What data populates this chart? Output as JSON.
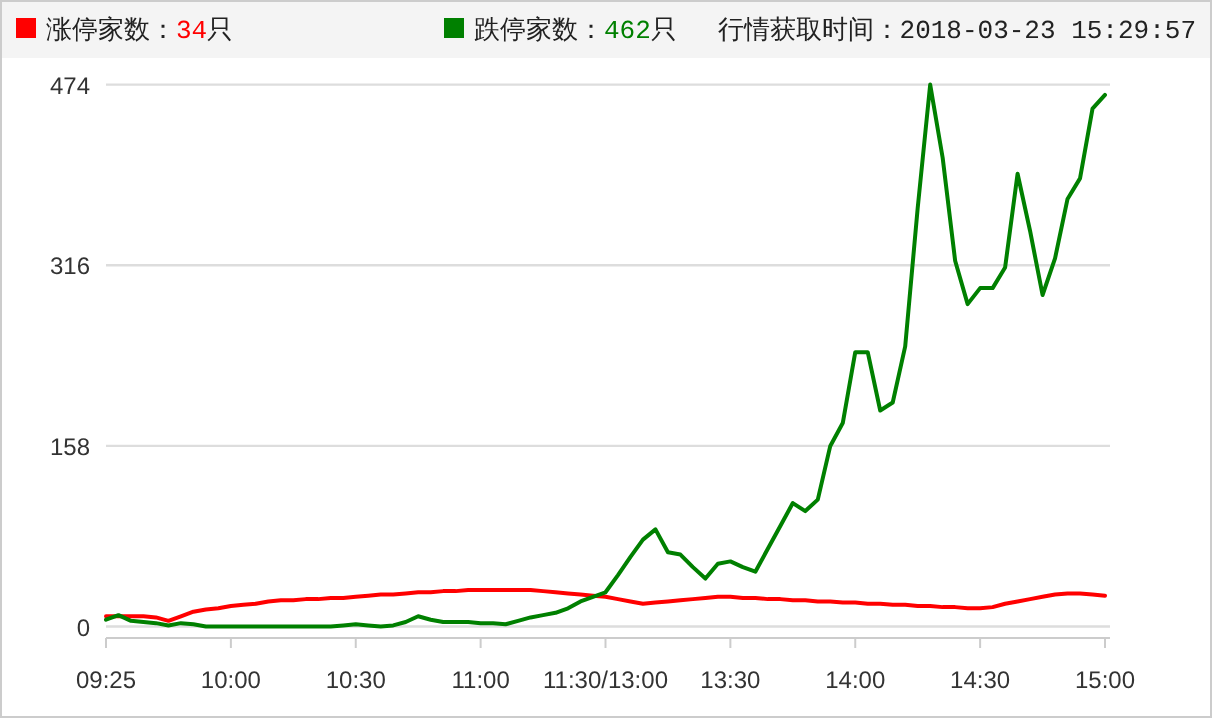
{
  "chart_data": {
    "type": "line",
    "legend": "top left",
    "grid": "y",
    "line_style": "solid",
    "marker": "none",
    "annotations": [
      "行情获取时间：2018-03-23 15:29:57"
    ],
    "ylim": [
      -10,
      474
    ],
    "yticks": [
      0,
      158,
      316,
      474
    ],
    "categories": [
      "09:25",
      null,
      null,
      null,
      null,
      null,
      null,
      null,
      null,
      null,
      "10:00",
      null,
      null,
      null,
      null,
      null,
      null,
      null,
      null,
      null,
      "10:30",
      null,
      null,
      null,
      null,
      null,
      null,
      null,
      null,
      null,
      "11:00",
      null,
      null,
      null,
      null,
      null,
      null,
      null,
      null,
      null,
      "11:30/13:00",
      null,
      null,
      null,
      null,
      null,
      null,
      null,
      null,
      null,
      "13:30",
      null,
      null,
      null,
      null,
      null,
      null,
      null,
      null,
      null,
      "14:00",
      null,
      null,
      null,
      null,
      null,
      null,
      null,
      null,
      null,
      "14:30",
      null,
      null,
      null,
      null,
      null,
      null,
      null,
      null,
      null,
      "15:00"
    ],
    "series": [
      {
        "name": "涨停家数：34只",
        "color": "#ff0000",
        "values": [
          9,
          9,
          9,
          9,
          8,
          5,
          9,
          13,
          15,
          16,
          18,
          19,
          20,
          22,
          23,
          23,
          24,
          24,
          25,
          25,
          26,
          27,
          28,
          28,
          29,
          30,
          30,
          31,
          31,
          32,
          32,
          32,
          32,
          32,
          32,
          31,
          30,
          29,
          28,
          27,
          26,
          24,
          22,
          20,
          21,
          22,
          23,
          24,
          25,
          26,
          26,
          25,
          25,
          24,
          24,
          23,
          23,
          22,
          22,
          21,
          21,
          20,
          20,
          19,
          19,
          18,
          18,
          17,
          17,
          16,
          16,
          17,
          20,
          22,
          24,
          26,
          28,
          29,
          29,
          28,
          27
        ]
      },
      {
        "name": "跌停家数：462只",
        "color": "#008000",
        "values": [
          6,
          10,
          5,
          4,
          3,
          1,
          3,
          2,
          0,
          0,
          0,
          0,
          0,
          0,
          0,
          0,
          0,
          0,
          0,
          1,
          2,
          1,
          0,
          1,
          4,
          9,
          6,
          4,
          4,
          4,
          3,
          3,
          2,
          5,
          8,
          10,
          12,
          16,
          22,
          26,
          30,
          45,
          61,
          76,
          85,
          65,
          63,
          52,
          42,
          55,
          57,
          52,
          48,
          68,
          88,
          108,
          101,
          111,
          158,
          178,
          240,
          240,
          189,
          196,
          245,
          366,
          474,
          410,
          320,
          282,
          296,
          296,
          314,
          396,
          346,
          290,
          322,
          374,
          392,
          453,
          465
        ]
      }
    ]
  }
}
